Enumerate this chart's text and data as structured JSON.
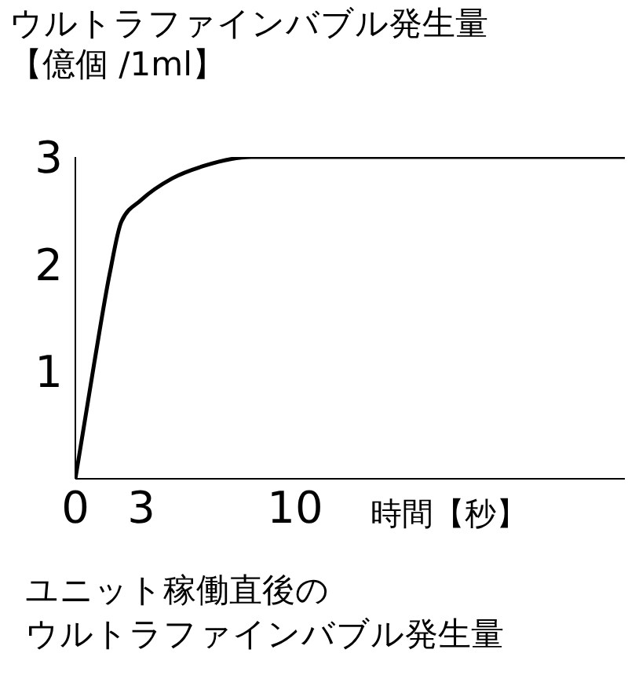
{
  "chart_data": {
    "type": "line",
    "title": "ウルトラファインバブル発生量",
    "ylabel": "【億個 /1ml】",
    "xlabel": "時間【秒】",
    "annotations": [
      "ユニット稼働直後の",
      "ウルトラファインバブル発生量"
    ],
    "x": [
      0,
      0.86,
      1.57,
      2.1,
      3,
      4.4,
      5.9,
      8,
      10,
      25
    ],
    "series": [
      {
        "color": "#000000",
        "values": [
          0,
          1.08,
          1.92,
          2.4,
          2.6,
          2.8,
          2.92,
          3,
          3,
          3
        ]
      }
    ],
    "xlim": [
      0,
      25
    ],
    "xticks": [
      0,
      3,
      10
    ],
    "ylim": [
      0,
      3
    ],
    "yticks": [
      1,
      2,
      3
    ],
    "grid": false,
    "legend": false,
    "marker": "none",
    "line_style": "solid"
  }
}
